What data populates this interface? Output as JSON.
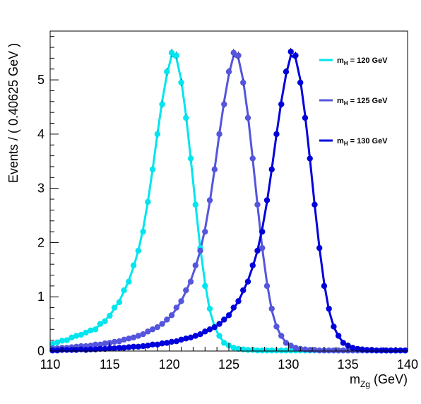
{
  "chart_data": {
    "type": "line",
    "x_min": 110,
    "x_max": 140,
    "y_min": 0,
    "y_max": 5.9,
    "xlabel_main": "m",
    "xlabel_sub": "Zg",
    "xlabel_unit": "(GeV)",
    "ylabel": "Events / ( 0.40625 GeV )",
    "x_ticks": [
      "110",
      "115",
      "120",
      "125",
      "130",
      "135",
      "140"
    ],
    "y_ticks": [
      "0",
      "1",
      "2",
      "3",
      "4",
      "5"
    ],
    "legend_position": "top-right",
    "series": [
      {
        "name_main": "m",
        "name_sub": "H",
        "name_rest": " = 120 GeV",
        "color": "#00e5ee",
        "x": [
          110.2,
          110.6,
          111.0,
          111.4,
          111.8,
          112.2,
          112.6,
          113.0,
          113.4,
          113.8,
          114.2,
          114.6,
          115.0,
          115.4,
          115.8,
          116.2,
          116.6,
          117.0,
          117.4,
          117.8,
          118.2,
          118.6,
          119.0,
          119.4,
          119.8,
          120.2,
          120.6,
          121.0,
          121.4,
          121.8,
          122.2,
          122.6,
          123.0,
          123.4,
          123.8,
          124.2,
          124.6,
          125.0,
          125.4,
          125.8,
          126.2,
          126.6,
          127.0,
          127.4,
          127.8,
          128.2,
          128.6,
          129.0,
          129.4,
          129.8,
          130.2,
          130.6,
          131.0,
          131.4,
          131.8,
          132.2,
          132.6,
          133.0,
          133.4,
          133.8,
          134.2,
          134.6,
          135.0,
          135.4,
          135.8,
          136.2,
          136.6,
          137.0,
          137.4,
          137.8,
          138.2,
          138.6,
          139.0,
          139.4,
          139.8
        ],
        "y": [
          0.14,
          0.16,
          0.18,
          0.2,
          0.23,
          0.26,
          0.3,
          0.33,
          0.37,
          0.42,
          0.48,
          0.56,
          0.66,
          0.78,
          0.92,
          1.1,
          1.3,
          1.55,
          1.85,
          2.25,
          2.75,
          3.35,
          4.0,
          4.6,
          5.1,
          5.45,
          5.4,
          5.0,
          4.35,
          3.55,
          2.7,
          1.9,
          1.25,
          0.75,
          0.45,
          0.27,
          0.16,
          0.1,
          0.06,
          0.04,
          0.03,
          0.02,
          0.02,
          0.01,
          0.01,
          0.01,
          0.01,
          0.01,
          0.01,
          0.01,
          0.01,
          0.01,
          0.01,
          0.01,
          0.01,
          0.01,
          0.01,
          0.01,
          0.01,
          0.01,
          0.01,
          0.01,
          0.01,
          0.01,
          0.01,
          0.01,
          0.01,
          0.01,
          0.01,
          0.01,
          0.01,
          0.01,
          0.01,
          0.01,
          0.01
        ],
        "points_y": [
          0.13,
          0.16,
          0.19,
          0.2,
          0.25,
          0.28,
          0.3,
          0.34,
          0.38,
          0.4,
          0.5,
          0.55,
          0.65,
          0.8,
          0.9,
          1.12,
          1.28,
          1.58,
          1.85,
          2.2,
          2.75,
          3.35,
          4.0,
          4.55,
          5.15,
          5.5,
          5.45,
          4.95,
          4.3,
          3.55,
          2.7,
          1.9,
          1.2,
          0.78,
          0.45,
          0.28,
          0.15,
          0.1,
          0.06,
          0.04,
          0.03,
          0.02,
          0.02,
          0.01,
          0.01,
          0.01,
          0.01,
          0.01,
          0.01,
          0.01,
          0.01,
          0.01,
          0.01,
          0.01,
          0.01,
          0.01,
          0.01,
          0.01,
          0.01,
          0.01,
          0.01,
          0.01,
          0.01,
          0.01,
          0.01,
          0.01,
          0.01,
          0.01,
          0.01,
          0.01,
          0.01,
          0.01,
          0.01,
          0.01,
          0.01
        ]
      },
      {
        "name_main": "m",
        "name_sub": "H",
        "name_rest": " = 125 GeV",
        "color": "#5555dd",
        "x": [
          110.2,
          110.6,
          111.0,
          111.4,
          111.8,
          112.2,
          112.6,
          113.0,
          113.4,
          113.8,
          114.2,
          114.6,
          115.0,
          115.4,
          115.8,
          116.2,
          116.6,
          117.0,
          117.4,
          117.8,
          118.2,
          118.6,
          119.0,
          119.4,
          119.8,
          120.2,
          120.6,
          121.0,
          121.4,
          121.8,
          122.2,
          122.6,
          123.0,
          123.4,
          123.8,
          124.2,
          124.6,
          125.0,
          125.4,
          125.8,
          126.2,
          126.6,
          127.0,
          127.4,
          127.8,
          128.2,
          128.6,
          129.0,
          129.4,
          129.8,
          130.2,
          130.6,
          131.0,
          131.4,
          131.8,
          132.2,
          132.6,
          133.0,
          133.4,
          133.8,
          134.2,
          134.6,
          135.0,
          135.4,
          135.8,
          136.2,
          136.6,
          137.0,
          137.4,
          137.8,
          138.2,
          138.6,
          139.0,
          139.4,
          139.8
        ],
        "y": [
          0.04,
          0.05,
          0.05,
          0.06,
          0.07,
          0.08,
          0.08,
          0.09,
          0.1,
          0.11,
          0.12,
          0.13,
          0.15,
          0.16,
          0.18,
          0.2,
          0.22,
          0.25,
          0.28,
          0.31,
          0.35,
          0.39,
          0.44,
          0.5,
          0.57,
          0.66,
          0.78,
          0.92,
          1.1,
          1.3,
          1.55,
          1.85,
          2.25,
          2.75,
          3.35,
          4.0,
          4.6,
          5.1,
          5.45,
          5.4,
          5.0,
          4.35,
          3.55,
          2.7,
          1.9,
          1.25,
          0.75,
          0.45,
          0.27,
          0.16,
          0.1,
          0.06,
          0.04,
          0.03,
          0.02,
          0.02,
          0.01,
          0.01,
          0.01,
          0.01,
          0.01,
          0.01,
          0.01,
          0.01,
          0.01,
          0.01,
          0.01,
          0.01,
          0.01,
          0.01,
          0.01,
          0.01,
          0.01,
          0.01,
          0.01
        ],
        "points_y": [
          0.05,
          0.05,
          0.06,
          0.06,
          0.07,
          0.08,
          0.09,
          0.09,
          0.1,
          0.12,
          0.12,
          0.14,
          0.15,
          0.17,
          0.18,
          0.21,
          0.23,
          0.25,
          0.28,
          0.31,
          0.36,
          0.4,
          0.44,
          0.5,
          0.58,
          0.66,
          0.8,
          0.92,
          1.12,
          1.28,
          1.58,
          1.85,
          2.2,
          2.78,
          3.35,
          4.0,
          4.55,
          5.15,
          5.5,
          5.45,
          4.95,
          4.3,
          3.55,
          2.7,
          1.9,
          1.2,
          0.78,
          0.45,
          0.28,
          0.15,
          0.1,
          0.06,
          0.04,
          0.03,
          0.02,
          0.02,
          0.01,
          0.01,
          0.01,
          0.01,
          0.01,
          0.01,
          0.01,
          0.01,
          0.01,
          0.01,
          0.01,
          0.01,
          0.01,
          0.01,
          0.01,
          0.01,
          0.01,
          0.01,
          0.01
        ]
      },
      {
        "name_main": "m",
        "name_sub": "H",
        "name_rest": " = 130 GeV",
        "color": "#0000dd",
        "x": [
          110.2,
          110.6,
          111.0,
          111.4,
          111.8,
          112.2,
          112.6,
          113.0,
          113.4,
          113.8,
          114.2,
          114.6,
          115.0,
          115.4,
          115.8,
          116.2,
          116.6,
          117.0,
          117.4,
          117.8,
          118.2,
          118.6,
          119.0,
          119.4,
          119.8,
          120.2,
          120.6,
          121.0,
          121.4,
          121.8,
          122.2,
          122.6,
          123.0,
          123.4,
          123.8,
          124.2,
          124.6,
          125.0,
          125.4,
          125.8,
          126.2,
          126.6,
          127.0,
          127.4,
          127.8,
          128.2,
          128.6,
          129.0,
          129.4,
          129.8,
          130.2,
          130.6,
          131.0,
          131.4,
          131.8,
          132.2,
          132.6,
          133.0,
          133.4,
          133.8,
          134.2,
          134.6,
          135.0,
          135.4,
          135.8,
          136.2,
          136.6,
          137.0,
          137.4,
          137.8,
          138.2,
          138.6,
          139.0,
          139.4,
          139.8
        ],
        "y": [
          0.01,
          0.01,
          0.01,
          0.02,
          0.02,
          0.02,
          0.02,
          0.02,
          0.03,
          0.03,
          0.03,
          0.04,
          0.04,
          0.05,
          0.05,
          0.06,
          0.07,
          0.07,
          0.08,
          0.09,
          0.1,
          0.11,
          0.12,
          0.13,
          0.15,
          0.16,
          0.18,
          0.2,
          0.22,
          0.25,
          0.28,
          0.31,
          0.35,
          0.39,
          0.44,
          0.5,
          0.57,
          0.66,
          0.78,
          0.92,
          1.1,
          1.3,
          1.55,
          1.85,
          2.25,
          2.75,
          3.35,
          4.0,
          4.6,
          5.1,
          5.45,
          5.4,
          5.0,
          4.35,
          3.55,
          2.7,
          1.9,
          1.25,
          0.75,
          0.45,
          0.27,
          0.16,
          0.1,
          0.06,
          0.04,
          0.03,
          0.02,
          0.02,
          0.01,
          0.01,
          0.01,
          0.01,
          0.01,
          0.01,
          0.01
        ],
        "points_y": [
          0.01,
          0.01,
          0.02,
          0.02,
          0.02,
          0.02,
          0.03,
          0.02,
          0.03,
          0.03,
          0.04,
          0.04,
          0.05,
          0.05,
          0.06,
          0.06,
          0.07,
          0.08,
          0.08,
          0.09,
          0.1,
          0.12,
          0.12,
          0.14,
          0.15,
          0.17,
          0.18,
          0.21,
          0.23,
          0.25,
          0.28,
          0.31,
          0.36,
          0.4,
          0.44,
          0.5,
          0.58,
          0.66,
          0.8,
          0.92,
          1.12,
          1.28,
          1.58,
          1.85,
          2.2,
          2.78,
          3.35,
          4.0,
          4.55,
          5.15,
          5.52,
          5.45,
          4.95,
          4.3,
          3.55,
          2.7,
          1.9,
          1.2,
          0.78,
          0.45,
          0.28,
          0.15,
          0.1,
          0.06,
          0.04,
          0.03,
          0.02,
          0.02,
          0.01,
          0.01,
          0.01,
          0.01,
          0.01,
          0.01,
          0.01
        ]
      }
    ]
  }
}
